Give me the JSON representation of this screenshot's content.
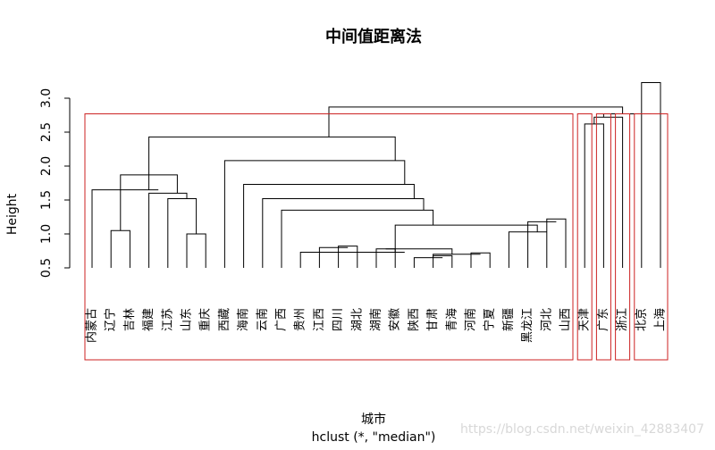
{
  "chart_data": {
    "type": "dendrogram",
    "title": "中间值距离法",
    "xlabel": "城市",
    "sublabel": "hclust (*, \"median\")",
    "ylabel": "Height",
    "ylim": [
      0,
      3.3
    ],
    "yticks": [
      "0.5",
      "1.0",
      "1.5",
      "2.0",
      "2.5",
      "3.0"
    ],
    "cut_height": 2.77,
    "cluster_color": "#cc2222",
    "watermark": "https://blog.csdn.net/weixin_42883407",
    "leaves": [
      "内蒙古",
      "辽宁",
      "吉林",
      "福建",
      "江苏",
      "山东",
      "重庆",
      "西藏",
      "海南",
      "云南",
      "广西",
      "贵州",
      "江西",
      "四川",
      "湖北",
      "湖南",
      "安徽",
      "陕西",
      "甘肃",
      "青海",
      "河南",
      "宁夏",
      "新疆",
      "黑龙江",
      "河北",
      "山西",
      "天津",
      "广东",
      "浙江",
      "北京",
      "上海"
    ],
    "merges": [
      [
        [
          5
        ],
        [
          6
        ],
        1.0
      ],
      [
        [
          4
        ],
        [
          5,
          6
        ],
        1.52
      ],
      [
        [
          3
        ],
        [
          4,
          5,
          6
        ],
        1.6
      ],
      [
        [
          1
        ],
        [
          2
        ],
        1.05
      ],
      [
        [
          1,
          2
        ],
        [
          3,
          4,
          5,
          6
        ],
        1.87
      ],
      [
        [
          0
        ],
        [
          1,
          2,
          3,
          4,
          5,
          6
        ],
        1.65
      ],
      [
        [
          18
        ],
        [
          19
        ],
        0.68
      ],
      [
        [
          17
        ],
        [
          18,
          19
        ],
        0.65
      ],
      [
        [
          20
        ],
        [
          21
        ],
        0.72
      ],
      [
        [
          17,
          18,
          19
        ],
        [
          20,
          21
        ],
        0.7
      ],
      [
        [
          15
        ],
        [
          16
        ],
        0.78
      ],
      [
        [
          15,
          16
        ],
        [
          17,
          18,
          19,
          20,
          21
        ],
        0.78
      ],
      [
        [
          13
        ],
        [
          14
        ],
        0.82
      ],
      [
        [
          12
        ],
        [
          13,
          14
        ],
        0.8
      ],
      [
        [
          12,
          13,
          14
        ],
        [
          15,
          16,
          17,
          18,
          19,
          20,
          21
        ],
        0.78
      ],
      [
        [
          11
        ],
        [
          12,
          13,
          14,
          15,
          16,
          17,
          18,
          19,
          20,
          21
        ],
        0.73
      ],
      [
        [
          24
        ],
        [
          25
        ],
        1.22
      ],
      [
        [
          23
        ],
        [
          24,
          25
        ],
        1.18
      ],
      [
        [
          22
        ],
        [
          23,
          24,
          25
        ],
        1.03
      ],
      [
        [
          11,
          12,
          13,
          14,
          15,
          16,
          17,
          18,
          19,
          20,
          21
        ],
        [
          22,
          23,
          24,
          25
        ],
        1.13
      ],
      [
        [
          10
        ],
        [
          11,
          12,
          13,
          14,
          15,
          16,
          17,
          18,
          19,
          20,
          21,
          22,
          23,
          24,
          25
        ],
        1.35
      ],
      [
        [
          9
        ],
        [
          10,
          11,
          12,
          13,
          14,
          15,
          16,
          17,
          18,
          19,
          20,
          21,
          22,
          23,
          24,
          25
        ],
        1.52
      ],
      [
        [
          8
        ],
        [
          9,
          10,
          11,
          12,
          13,
          14,
          15,
          16,
          17,
          18,
          19,
          20,
          21,
          22,
          23,
          24,
          25
        ],
        1.73
      ],
      [
        [
          7
        ],
        [
          8,
          9,
          10,
          11,
          12,
          13,
          14,
          15,
          16,
          17,
          18,
          19,
          20,
          21,
          22,
          23,
          24,
          25
        ],
        2.08
      ],
      [
        [
          0,
          1,
          2,
          3,
          4,
          5,
          6
        ],
        [
          7,
          8,
          9,
          10,
          11,
          12,
          13,
          14,
          15,
          16,
          17,
          18,
          19,
          20,
          21,
          22,
          23,
          24,
          25
        ],
        2.43
      ],
      [
        [
          0,
          1,
          2,
          3,
          4,
          5,
          6,
          7,
          8,
          9,
          10,
          11,
          12,
          13,
          14,
          15,
          16,
          17,
          18,
          19,
          20,
          21,
          22,
          23,
          24,
          25
        ],
        [
          26,
          27,
          28,
          29,
          30
        ],
        2.87
      ],
      [
        [
          26
        ],
        [
          27
        ],
        2.62
      ],
      [
        [
          26,
          27
        ],
        [
          28
        ],
        2.72
      ],
      [
        [
          26,
          27,
          28
        ],
        [
          29,
          30
        ],
        2.77
      ],
      [
        [
          29
        ],
        [
          30
        ],
        3.23
      ]
    ],
    "clusters": [
      [
        0,
        25
      ],
      [
        26,
        26
      ],
      [
        27,
        27
      ],
      [
        28,
        28
      ],
      [
        29,
        30
      ]
    ]
  }
}
